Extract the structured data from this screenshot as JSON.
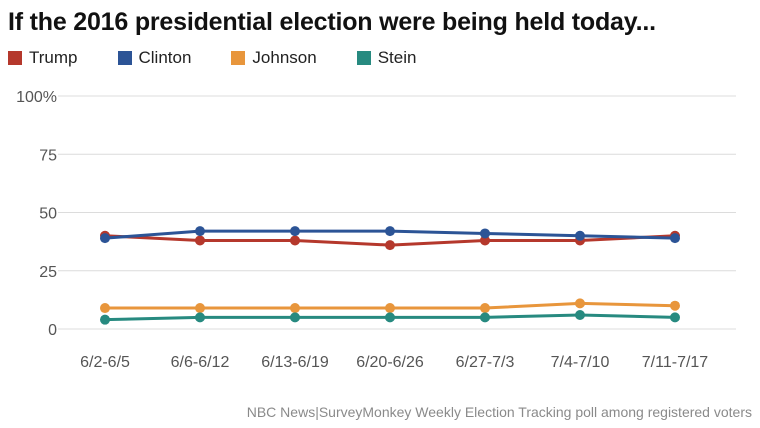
{
  "title": "If the 2016 presidential election were being held today...",
  "source": "NBC News|SurveyMonkey Weekly Election Tracking poll among registered voters",
  "chart_data": {
    "type": "line",
    "title": "If the 2016 presidential election were being held today...",
    "xlabel": "",
    "ylabel": "",
    "ylim": [
      0,
      100
    ],
    "yticks": [
      0,
      25,
      50,
      75,
      100
    ],
    "ytick_labels": [
      "0",
      "25",
      "50",
      "75",
      "100%"
    ],
    "grid": true,
    "legend": "top-left",
    "categories": [
      "6/2-6/5",
      "6/6-6/12",
      "6/13-6/19",
      "6/20-6/26",
      "6/27-7/3",
      "7/4-7/10",
      "7/11-7/17"
    ],
    "series": [
      {
        "name": "Trump",
        "color": "#b5382c",
        "values": [
          40,
          38,
          38,
          36,
          38,
          38,
          40
        ]
      },
      {
        "name": "Clinton",
        "color": "#2c5496",
        "values": [
          39,
          42,
          42,
          42,
          41,
          40,
          39
        ]
      },
      {
        "name": "Johnson",
        "color": "#e8963c",
        "values": [
          9,
          9,
          9,
          9,
          9,
          11,
          10
        ]
      },
      {
        "name": "Stein",
        "color": "#278a80",
        "values": [
          4,
          5,
          5,
          5,
          5,
          6,
          5
        ]
      }
    ]
  }
}
